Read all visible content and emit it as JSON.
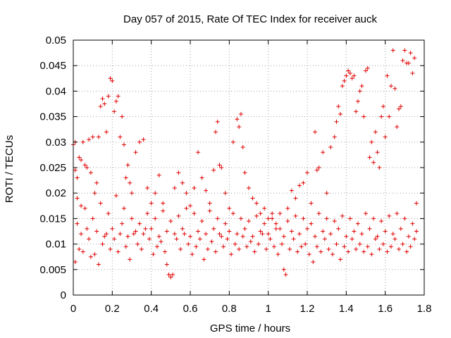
{
  "chart_data": {
    "type": "scatter",
    "title": "Day 057 of 2015, Rate Of TEC Index for receiver auck",
    "xlabel": "GPS time / hours",
    "ylabel": "ROTI / TECUs",
    "xlim": [
      0,
      1.8
    ],
    "ylim": [
      0,
      0.05
    ],
    "x_ticks": [
      "0",
      "0.2",
      "0.4",
      "0.6",
      "0.8",
      "1",
      "1.2",
      "1.4",
      "1.6",
      "1.8"
    ],
    "y_ticks": [
      "0",
      "0.005",
      "0.01",
      "0.015",
      "0.02",
      "0.025",
      "0.03",
      "0.035",
      "0.04",
      "0.045",
      "0.05"
    ],
    "grid": true,
    "marker": "plus",
    "color": "#e00000",
    "series": [
      {
        "points": [
          [
            0.0,
            0.0295
          ],
          [
            0.01,
            0.03
          ],
          [
            0.01,
            0.0245
          ],
          [
            0.02,
            0.023
          ],
          [
            0.02,
            0.019
          ],
          [
            0.03,
            0.027
          ],
          [
            0.04,
            0.0265
          ],
          [
            0.04,
            0.0175
          ],
          [
            0.05,
            0.03
          ],
          [
            0.06,
            0.0255
          ],
          [
            0.07,
            0.025
          ],
          [
            0.08,
            0.0305
          ],
          [
            0.09,
            0.024
          ],
          [
            0.1,
            0.031
          ],
          [
            0.11,
            0.02
          ],
          [
            0.12,
            0.022
          ],
          [
            0.13,
            0.031
          ],
          [
            0.14,
            0.037
          ],
          [
            0.15,
            0.0385
          ],
          [
            0.16,
            0.0375
          ],
          [
            0.17,
            0.032
          ],
          [
            0.18,
            0.039
          ],
          [
            0.19,
            0.0425
          ],
          [
            0.2,
            0.042
          ],
          [
            0.21,
            0.036
          ],
          [
            0.22,
            0.038
          ],
          [
            0.23,
            0.039
          ],
          [
            0.24,
            0.031
          ],
          [
            0.25,
            0.035
          ],
          [
            0.26,
            0.0295
          ],
          [
            0.27,
            0.023
          ],
          [
            0.28,
            0.0255
          ],
          [
            0.29,
            0.022
          ],
          [
            0.3,
            0.02
          ],
          [
            0.32,
            0.028
          ],
          [
            0.34,
            0.03
          ],
          [
            0.36,
            0.0305
          ],
          [
            0.38,
            0.021
          ],
          [
            0.4,
            0.018
          ],
          [
            0.42,
            0.02
          ],
          [
            0.44,
            0.0235
          ],
          [
            0.46,
            0.018
          ],
          [
            0.48,
            0.006
          ],
          [
            0.49,
            0.004
          ],
          [
            0.5,
            0.0035
          ],
          [
            0.51,
            0.004
          ],
          [
            0.52,
            0.021
          ],
          [
            0.54,
            0.024
          ],
          [
            0.56,
            0.022
          ],
          [
            0.58,
            0.02
          ],
          [
            0.6,
            0.0175
          ],
          [
            0.62,
            0.021
          ],
          [
            0.64,
            0.028
          ],
          [
            0.66,
            0.023
          ],
          [
            0.68,
            0.0205
          ],
          [
            0.7,
            0.018
          ],
          [
            0.72,
            0.0245
          ],
          [
            0.73,
            0.032
          ],
          [
            0.74,
            0.034
          ],
          [
            0.75,
            0.0255
          ],
          [
            0.76,
            0.025
          ],
          [
            0.78,
            0.02
          ],
          [
            0.8,
            0.017
          ],
          [
            0.82,
            0.03
          ],
          [
            0.84,
            0.0345
          ],
          [
            0.85,
            0.033
          ],
          [
            0.86,
            0.0355
          ],
          [
            0.87,
            0.029
          ],
          [
            0.88,
            0.024
          ],
          [
            0.9,
            0.021
          ],
          [
            0.92,
            0.019
          ],
          [
            0.94,
            0.018
          ],
          [
            0.96,
            0.016
          ],
          [
            0.98,
            0.017
          ],
          [
            1.0,
            0.015
          ],
          [
            1.02,
            0.016
          ],
          [
            1.04,
            0.014
          ],
          [
            1.06,
            0.013
          ],
          [
            1.08,
            0.005
          ],
          [
            1.09,
            0.004
          ],
          [
            1.1,
            0.017
          ],
          [
            1.12,
            0.0205
          ],
          [
            1.14,
            0.019
          ],
          [
            1.16,
            0.0215
          ],
          [
            1.18,
            0.022
          ],
          [
            1.2,
            0.024
          ],
          [
            1.22,
            0.018
          ],
          [
            1.24,
            0.032
          ],
          [
            1.25,
            0.0245
          ],
          [
            1.26,
            0.025
          ],
          [
            1.28,
            0.028
          ],
          [
            1.3,
            0.02
          ],
          [
            1.32,
            0.029
          ],
          [
            1.34,
            0.031
          ],
          [
            1.35,
            0.034
          ],
          [
            1.36,
            0.037
          ],
          [
            1.37,
            0.0355
          ],
          [
            1.38,
            0.041
          ],
          [
            1.39,
            0.042
          ],
          [
            1.4,
            0.043
          ],
          [
            1.41,
            0.044
          ],
          [
            1.42,
            0.0435
          ],
          [
            1.43,
            0.0425
          ],
          [
            1.44,
            0.043
          ],
          [
            1.45,
            0.036
          ],
          [
            1.46,
            0.038
          ],
          [
            1.47,
            0.04
          ],
          [
            1.48,
            0.041
          ],
          [
            1.49,
            0.035
          ],
          [
            1.5,
            0.044
          ],
          [
            1.51,
            0.0445
          ],
          [
            1.52,
            0.027
          ],
          [
            1.53,
            0.03
          ],
          [
            1.54,
            0.026
          ],
          [
            1.55,
            0.032
          ],
          [
            1.56,
            0.028
          ],
          [
            1.57,
            0.025
          ],
          [
            1.58,
            0.035
          ],
          [
            1.59,
            0.037
          ],
          [
            1.6,
            0.031
          ],
          [
            1.61,
            0.043
          ],
          [
            1.62,
            0.035
          ],
          [
            1.63,
            0.041
          ],
          [
            1.64,
            0.048
          ],
          [
            1.65,
            0.0405
          ],
          [
            1.66,
            0.033
          ],
          [
            1.67,
            0.0365
          ],
          [
            1.68,
            0.037
          ],
          [
            1.69,
            0.046
          ],
          [
            1.7,
            0.048
          ],
          [
            1.71,
            0.0455
          ],
          [
            1.72,
            0.0455
          ],
          [
            1.73,
            0.0475
          ],
          [
            1.74,
            0.0435
          ],
          [
            1.75,
            0.0465
          ],
          [
            1.76,
            0.018
          ],
          [
            0.01,
            0.0065
          ],
          [
            0.03,
            0.009
          ],
          [
            0.05,
            0.0085
          ],
          [
            0.07,
            0.013
          ],
          [
            0.09,
            0.0075
          ],
          [
            0.11,
            0.008
          ],
          [
            0.13,
            0.006
          ],
          [
            0.15,
            0.01
          ],
          [
            0.17,
            0.012
          ],
          [
            0.19,
            0.009
          ],
          [
            0.21,
            0.011
          ],
          [
            0.23,
            0.0085
          ],
          [
            0.25,
            0.014
          ],
          [
            0.27,
            0.0095
          ],
          [
            0.29,
            0.007
          ],
          [
            0.31,
            0.012
          ],
          [
            0.33,
            0.01
          ],
          [
            0.35,
            0.009
          ],
          [
            0.37,
            0.013
          ],
          [
            0.39,
            0.011
          ],
          [
            0.41,
            0.008
          ],
          [
            0.43,
            0.0095
          ],
          [
            0.45,
            0.0105
          ],
          [
            0.47,
            0.0085
          ],
          [
            0.53,
            0.011
          ],
          [
            0.55,
            0.009
          ],
          [
            0.57,
            0.012
          ],
          [
            0.59,
            0.01
          ],
          [
            0.61,
            0.008
          ],
          [
            0.63,
            0.0095
          ],
          [
            0.65,
            0.011
          ],
          [
            0.67,
            0.007
          ],
          [
            0.69,
            0.009
          ],
          [
            0.71,
            0.0105
          ],
          [
            0.73,
            0.0085
          ],
          [
            0.75,
            0.012
          ],
          [
            0.77,
            0.0095
          ],
          [
            0.79,
            0.011
          ],
          [
            0.81,
            0.008
          ],
          [
            0.83,
            0.01
          ],
          [
            0.85,
            0.009
          ],
          [
            0.87,
            0.0115
          ],
          [
            0.89,
            0.0095
          ],
          [
            0.91,
            0.0105
          ],
          [
            0.93,
            0.0085
          ],
          [
            0.95,
            0.01
          ],
          [
            0.97,
            0.012
          ],
          [
            0.99,
            0.009
          ],
          [
            1.01,
            0.011
          ],
          [
            1.03,
            0.0095
          ],
          [
            1.05,
            0.008
          ],
          [
            1.07,
            0.01
          ],
          [
            1.11,
            0.009
          ],
          [
            1.13,
            0.011
          ],
          [
            1.15,
            0.0085
          ],
          [
            1.17,
            0.0095
          ],
          [
            1.19,
            0.01
          ],
          [
            1.21,
            0.008
          ],
          [
            1.23,
            0.0065
          ],
          [
            1.25,
            0.0095
          ],
          [
            1.27,
            0.0085
          ],
          [
            1.29,
            0.011
          ],
          [
            1.31,
            0.009
          ],
          [
            1.33,
            0.008
          ],
          [
            1.35,
            0.01
          ],
          [
            1.37,
            0.007
          ],
          [
            1.39,
            0.0095
          ],
          [
            1.41,
            0.0085
          ],
          [
            1.43,
            0.011
          ],
          [
            1.45,
            0.009
          ],
          [
            1.47,
            0.01
          ],
          [
            1.49,
            0.0085
          ],
          [
            1.51,
            0.0095
          ],
          [
            1.53,
            0.008
          ],
          [
            1.55,
            0.011
          ],
          [
            1.57,
            0.009
          ],
          [
            1.59,
            0.01
          ],
          [
            1.61,
            0.0085
          ],
          [
            1.63,
            0.0095
          ],
          [
            1.65,
            0.011
          ],
          [
            1.67,
            0.009
          ],
          [
            1.69,
            0.01
          ],
          [
            1.71,
            0.0085
          ],
          [
            1.73,
            0.0095
          ],
          [
            1.75,
            0.011
          ],
          [
            0.02,
            0.014
          ],
          [
            0.06,
            0.017
          ],
          [
            0.1,
            0.015
          ],
          [
            0.14,
            0.018
          ],
          [
            0.18,
            0.016
          ],
          [
            0.22,
            0.0195
          ],
          [
            0.26,
            0.017
          ],
          [
            0.3,
            0.015
          ],
          [
            0.34,
            0.014
          ],
          [
            0.38,
            0.016
          ],
          [
            0.42,
            0.015
          ],
          [
            0.46,
            0.0165
          ],
          [
            0.5,
            0.0145
          ],
          [
            0.54,
            0.0155
          ],
          [
            0.58,
            0.017
          ],
          [
            0.62,
            0.016
          ],
          [
            0.66,
            0.0145
          ],
          [
            0.7,
            0.0165
          ],
          [
            0.74,
            0.015
          ],
          [
            0.78,
            0.014
          ],
          [
            0.82,
            0.016
          ],
          [
            0.86,
            0.015
          ],
          [
            0.9,
            0.0145
          ],
          [
            0.94,
            0.0155
          ],
          [
            0.98,
            0.014
          ],
          [
            1.02,
            0.015
          ],
          [
            1.06,
            0.016
          ],
          [
            1.1,
            0.0145
          ],
          [
            1.14,
            0.0155
          ],
          [
            1.18,
            0.015
          ],
          [
            1.22,
            0.014
          ],
          [
            1.26,
            0.016
          ],
          [
            1.3,
            0.015
          ],
          [
            1.34,
            0.0145
          ],
          [
            1.38,
            0.0155
          ],
          [
            1.42,
            0.015
          ],
          [
            1.46,
            0.014
          ],
          [
            1.5,
            0.016
          ],
          [
            1.54,
            0.015
          ],
          [
            1.58,
            0.0145
          ],
          [
            1.62,
            0.0155
          ],
          [
            1.66,
            0.016
          ],
          [
            1.7,
            0.015
          ],
          [
            1.74,
            0.014
          ],
          [
            0.04,
            0.012
          ],
          [
            0.08,
            0.011
          ],
          [
            0.12,
            0.0125
          ],
          [
            0.16,
            0.0115
          ],
          [
            0.2,
            0.013
          ],
          [
            0.24,
            0.012
          ],
          [
            0.28,
            0.0115
          ],
          [
            0.32,
            0.0125
          ],
          [
            0.36,
            0.012
          ],
          [
            0.4,
            0.013
          ],
          [
            0.44,
            0.0115
          ],
          [
            0.48,
            0.0125
          ],
          [
            0.52,
            0.012
          ],
          [
            0.56,
            0.013
          ],
          [
            0.6,
            0.0115
          ],
          [
            0.64,
            0.0125
          ],
          [
            0.68,
            0.012
          ],
          [
            0.72,
            0.013
          ],
          [
            0.76,
            0.0115
          ],
          [
            0.8,
            0.0125
          ],
          [
            0.84,
            0.012
          ],
          [
            0.88,
            0.013
          ],
          [
            0.92,
            0.0115
          ],
          [
            0.96,
            0.0125
          ],
          [
            1.0,
            0.012
          ],
          [
            1.04,
            0.013
          ],
          [
            1.08,
            0.0115
          ],
          [
            1.12,
            0.0125
          ],
          [
            1.16,
            0.012
          ],
          [
            1.2,
            0.013
          ],
          [
            1.24,
            0.0115
          ],
          [
            1.28,
            0.0125
          ],
          [
            1.32,
            0.012
          ],
          [
            1.36,
            0.013
          ],
          [
            1.4,
            0.0115
          ],
          [
            1.44,
            0.0125
          ],
          [
            1.48,
            0.012
          ],
          [
            1.52,
            0.013
          ],
          [
            1.56,
            0.0115
          ],
          [
            1.6,
            0.0125
          ],
          [
            1.64,
            0.012
          ],
          [
            1.68,
            0.013
          ],
          [
            1.72,
            0.0115
          ],
          [
            1.76,
            0.0125
          ]
        ]
      }
    ]
  }
}
